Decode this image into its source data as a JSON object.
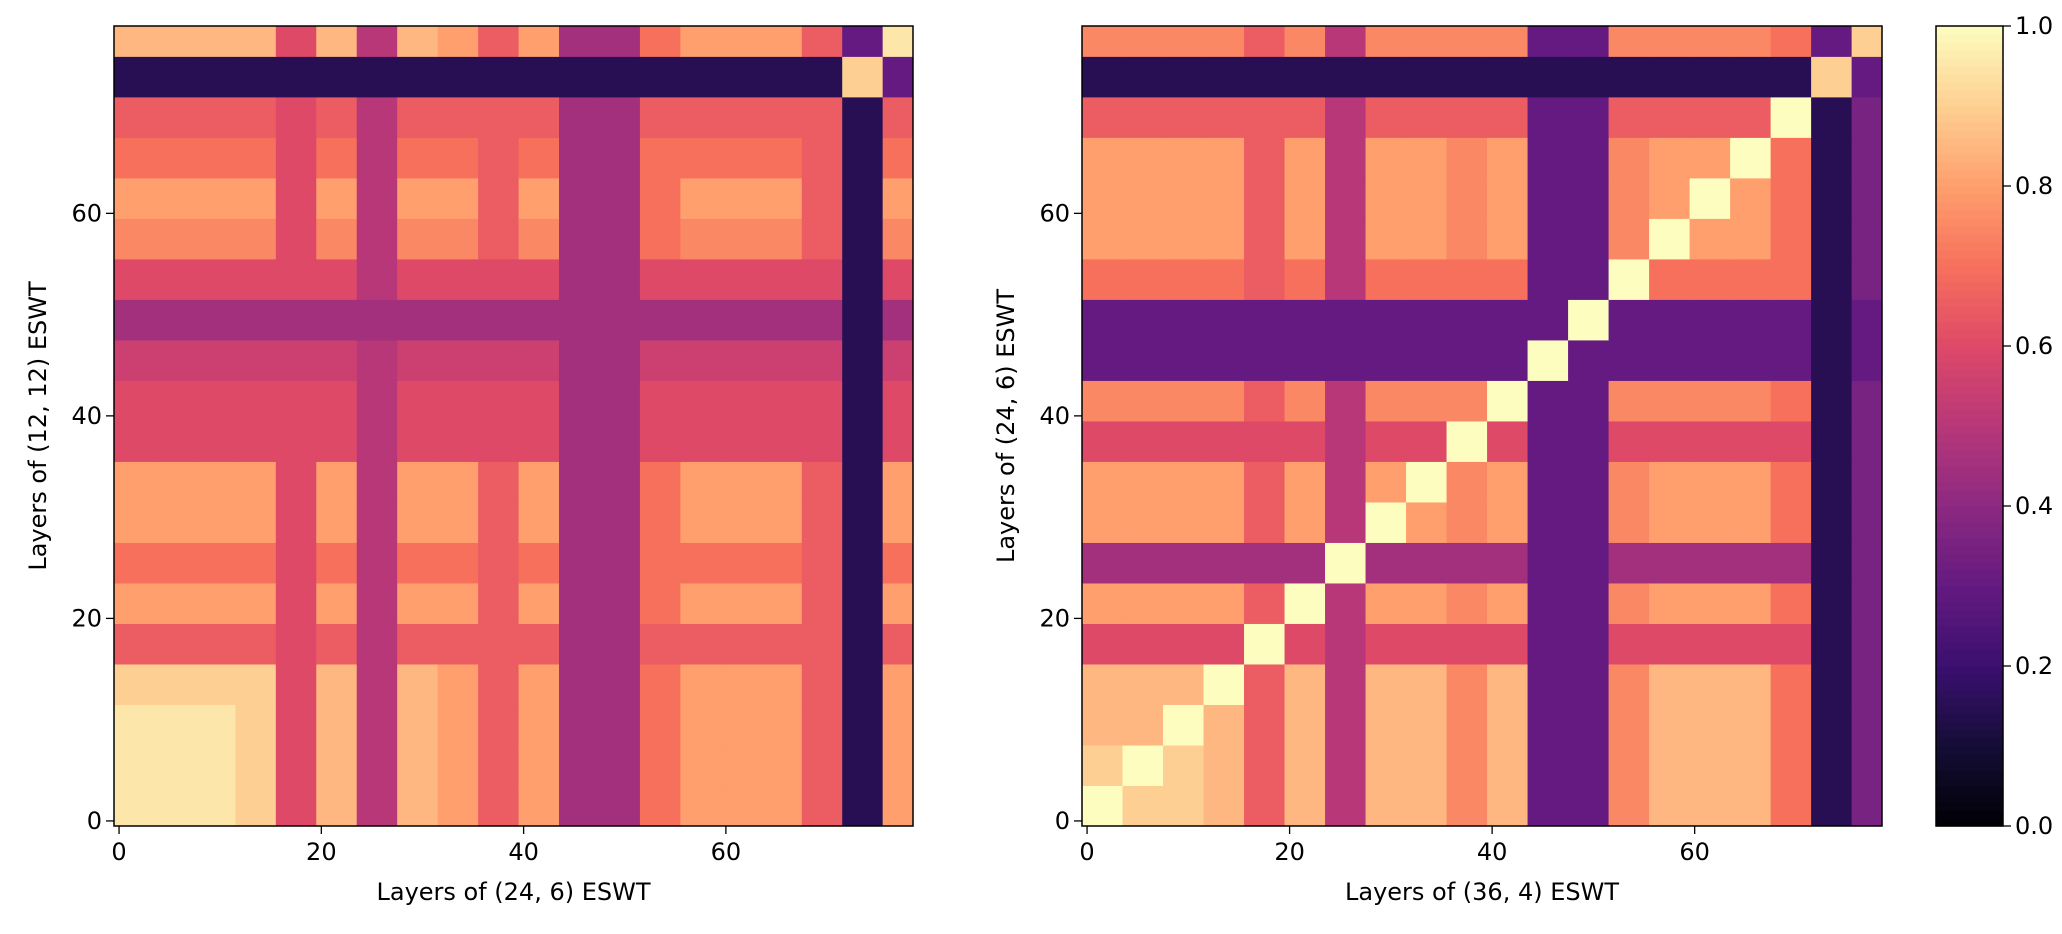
{
  "chart_data": [
    {
      "type": "heatmap",
      "xlabel": "Layers of (24, 6) ESWT",
      "ylabel": "Layers of (12, 12) ESWT",
      "colormap": "magma",
      "xlim": [
        -0.5,
        78.5
      ],
      "ylim": [
        -0.5,
        78.5
      ],
      "xticks": [
        0,
        20,
        40,
        60
      ],
      "yticks": [
        0,
        20,
        40,
        60
      ],
      "xbins": [
        -0.5,
        3.5,
        7.5,
        11.5,
        15.5,
        19.5,
        23.5,
        27.5,
        31.5,
        35.5,
        39.5,
        43.5,
        47.5,
        51.5,
        55.5,
        59.5,
        63.5,
        67.5,
        71.5,
        75.5,
        78.5
      ],
      "ybins": [
        -0.5,
        3.5,
        7.5,
        11.5,
        15.5,
        19.5,
        23.5,
        27.5,
        31.5,
        35.5,
        39.5,
        43.5,
        47.5,
        51.5,
        55.5,
        59.5,
        63.5,
        67.5,
        71.5,
        75.5,
        78.5
      ],
      "z": [
        [
          0.95,
          0.95,
          0.95,
          0.9,
          0.6,
          0.85,
          0.5,
          0.85,
          0.8,
          0.65,
          0.8,
          0.45,
          0.45,
          0.7,
          0.8,
          0.8,
          0.8,
          0.65,
          0.15,
          0.8
        ],
        [
          0.95,
          0.95,
          0.95,
          0.9,
          0.6,
          0.85,
          0.5,
          0.85,
          0.8,
          0.65,
          0.8,
          0.45,
          0.45,
          0.7,
          0.8,
          0.8,
          0.8,
          0.65,
          0.15,
          0.8
        ],
        [
          0.95,
          0.95,
          0.95,
          0.9,
          0.6,
          0.85,
          0.5,
          0.85,
          0.8,
          0.65,
          0.8,
          0.45,
          0.45,
          0.7,
          0.8,
          0.8,
          0.8,
          0.65,
          0.15,
          0.8
        ],
        [
          0.9,
          0.9,
          0.9,
          0.9,
          0.6,
          0.85,
          0.5,
          0.85,
          0.8,
          0.65,
          0.8,
          0.45,
          0.45,
          0.7,
          0.8,
          0.8,
          0.8,
          0.65,
          0.15,
          0.8
        ],
        [
          0.65,
          0.65,
          0.65,
          0.65,
          0.6,
          0.65,
          0.5,
          0.65,
          0.65,
          0.65,
          0.65,
          0.45,
          0.45,
          0.65,
          0.65,
          0.65,
          0.65,
          0.65,
          0.15,
          0.65
        ],
        [
          0.8,
          0.8,
          0.8,
          0.8,
          0.6,
          0.8,
          0.5,
          0.8,
          0.8,
          0.65,
          0.8,
          0.45,
          0.45,
          0.7,
          0.8,
          0.8,
          0.8,
          0.65,
          0.15,
          0.8
        ],
        [
          0.7,
          0.7,
          0.7,
          0.7,
          0.6,
          0.7,
          0.5,
          0.7,
          0.7,
          0.65,
          0.7,
          0.45,
          0.45,
          0.7,
          0.7,
          0.7,
          0.7,
          0.65,
          0.15,
          0.7
        ],
        [
          0.8,
          0.8,
          0.8,
          0.8,
          0.6,
          0.8,
          0.5,
          0.8,
          0.8,
          0.65,
          0.8,
          0.45,
          0.45,
          0.7,
          0.8,
          0.8,
          0.8,
          0.65,
          0.15,
          0.8
        ],
        [
          0.8,
          0.8,
          0.8,
          0.8,
          0.6,
          0.8,
          0.5,
          0.8,
          0.8,
          0.65,
          0.8,
          0.45,
          0.45,
          0.7,
          0.8,
          0.8,
          0.8,
          0.65,
          0.15,
          0.8
        ],
        [
          0.6,
          0.6,
          0.6,
          0.6,
          0.6,
          0.6,
          0.5,
          0.6,
          0.6,
          0.6,
          0.6,
          0.45,
          0.45,
          0.6,
          0.6,
          0.6,
          0.6,
          0.6,
          0.15,
          0.6
        ],
        [
          0.6,
          0.6,
          0.6,
          0.6,
          0.6,
          0.6,
          0.5,
          0.6,
          0.6,
          0.6,
          0.6,
          0.45,
          0.45,
          0.6,
          0.6,
          0.6,
          0.6,
          0.6,
          0.15,
          0.6
        ],
        [
          0.55,
          0.55,
          0.55,
          0.55,
          0.55,
          0.55,
          0.5,
          0.55,
          0.55,
          0.55,
          0.55,
          0.45,
          0.45,
          0.55,
          0.55,
          0.55,
          0.55,
          0.55,
          0.15,
          0.55
        ],
        [
          0.45,
          0.45,
          0.45,
          0.45,
          0.45,
          0.45,
          0.45,
          0.45,
          0.45,
          0.45,
          0.45,
          0.45,
          0.45,
          0.45,
          0.45,
          0.45,
          0.45,
          0.45,
          0.15,
          0.45
        ],
        [
          0.6,
          0.6,
          0.6,
          0.6,
          0.6,
          0.6,
          0.5,
          0.6,
          0.6,
          0.6,
          0.6,
          0.45,
          0.45,
          0.6,
          0.6,
          0.6,
          0.6,
          0.6,
          0.15,
          0.6
        ],
        [
          0.75,
          0.75,
          0.75,
          0.75,
          0.6,
          0.75,
          0.5,
          0.75,
          0.75,
          0.65,
          0.75,
          0.45,
          0.45,
          0.7,
          0.75,
          0.75,
          0.75,
          0.65,
          0.15,
          0.75
        ],
        [
          0.8,
          0.8,
          0.8,
          0.8,
          0.6,
          0.8,
          0.5,
          0.8,
          0.8,
          0.65,
          0.8,
          0.45,
          0.45,
          0.7,
          0.8,
          0.8,
          0.8,
          0.65,
          0.15,
          0.8
        ],
        [
          0.7,
          0.7,
          0.7,
          0.7,
          0.6,
          0.7,
          0.5,
          0.7,
          0.7,
          0.65,
          0.7,
          0.45,
          0.45,
          0.7,
          0.7,
          0.7,
          0.7,
          0.65,
          0.15,
          0.7
        ],
        [
          0.65,
          0.65,
          0.65,
          0.65,
          0.6,
          0.65,
          0.5,
          0.65,
          0.65,
          0.65,
          0.65,
          0.45,
          0.45,
          0.65,
          0.65,
          0.65,
          0.65,
          0.65,
          0.15,
          0.65
        ],
        [
          0.15,
          0.15,
          0.15,
          0.15,
          0.15,
          0.15,
          0.15,
          0.15,
          0.15,
          0.15,
          0.15,
          0.15,
          0.15,
          0.15,
          0.15,
          0.15,
          0.15,
          0.15,
          0.9,
          0.3
        ],
        [
          0.85,
          0.85,
          0.85,
          0.85,
          0.6,
          0.85,
          0.5,
          0.85,
          0.8,
          0.65,
          0.8,
          0.45,
          0.45,
          0.7,
          0.8,
          0.8,
          0.8,
          0.65,
          0.3,
          0.95
        ]
      ],
      "colorbar": {
        "lim": [
          0,
          1
        ],
        "ticks": [
          {
            "value": 0,
            "label": "0.0"
          },
          0.2,
          0.4,
          0.6,
          0.8,
          {
            "value": 1,
            "label": "1.0"
          }
        ]
      }
    },
    {
      "type": "heatmap",
      "xlabel": "Layers of (36, 4) ESWT",
      "ylabel": "Layers of (24, 6) ESWT",
      "colormap": "magma",
      "xlim": [
        -0.5,
        78.5
      ],
      "ylim": [
        -0.5,
        78.5
      ],
      "xticks": [
        0,
        20,
        40,
        60
      ],
      "yticks": [
        0,
        20,
        40,
        60
      ],
      "xbins": [
        -0.5,
        3.5,
        7.5,
        11.5,
        15.5,
        19.5,
        23.5,
        27.5,
        31.5,
        35.5,
        39.5,
        43.5,
        47.5,
        51.5,
        55.5,
        59.5,
        63.5,
        67.5,
        71.5,
        75.5,
        78.5
      ],
      "ybins": [
        -0.5,
        3.5,
        7.5,
        11.5,
        15.5,
        19.5,
        23.5,
        27.5,
        31.5,
        35.5,
        39.5,
        43.5,
        47.5,
        51.5,
        55.5,
        59.5,
        63.5,
        67.5,
        71.5,
        75.5,
        78.5
      ],
      "z": [
        [
          1.0,
          0.9,
          0.9,
          0.85,
          0.65,
          0.85,
          0.5,
          0.85,
          0.85,
          0.75,
          0.85,
          0.3,
          0.3,
          0.75,
          0.85,
          0.85,
          0.85,
          0.7,
          0.15,
          0.35
        ],
        [
          0.9,
          1.0,
          0.9,
          0.85,
          0.65,
          0.85,
          0.5,
          0.85,
          0.85,
          0.75,
          0.85,
          0.3,
          0.3,
          0.75,
          0.85,
          0.85,
          0.85,
          0.7,
          0.15,
          0.35
        ],
        [
          0.85,
          0.85,
          1.0,
          0.85,
          0.65,
          0.85,
          0.5,
          0.85,
          0.85,
          0.75,
          0.85,
          0.3,
          0.3,
          0.75,
          0.85,
          0.85,
          0.85,
          0.7,
          0.15,
          0.35
        ],
        [
          0.85,
          0.85,
          0.85,
          1.0,
          0.65,
          0.85,
          0.5,
          0.85,
          0.85,
          0.75,
          0.85,
          0.3,
          0.3,
          0.75,
          0.85,
          0.85,
          0.85,
          0.7,
          0.15,
          0.35
        ],
        [
          0.6,
          0.6,
          0.6,
          0.6,
          1.0,
          0.6,
          0.5,
          0.6,
          0.6,
          0.6,
          0.6,
          0.3,
          0.3,
          0.6,
          0.6,
          0.6,
          0.6,
          0.6,
          0.15,
          0.35
        ],
        [
          0.8,
          0.8,
          0.8,
          0.8,
          0.65,
          1.0,
          0.5,
          0.8,
          0.8,
          0.75,
          0.8,
          0.3,
          0.3,
          0.75,
          0.8,
          0.8,
          0.8,
          0.7,
          0.15,
          0.35
        ],
        [
          0.45,
          0.45,
          0.45,
          0.45,
          0.45,
          0.45,
          1.0,
          0.45,
          0.45,
          0.45,
          0.45,
          0.3,
          0.3,
          0.45,
          0.45,
          0.45,
          0.45,
          0.45,
          0.15,
          0.35
        ],
        [
          0.8,
          0.8,
          0.8,
          0.8,
          0.65,
          0.8,
          0.5,
          1.0,
          0.8,
          0.75,
          0.8,
          0.3,
          0.3,
          0.75,
          0.8,
          0.8,
          0.8,
          0.7,
          0.15,
          0.35
        ],
        [
          0.8,
          0.8,
          0.8,
          0.8,
          0.65,
          0.8,
          0.5,
          0.8,
          1.0,
          0.75,
          0.8,
          0.3,
          0.3,
          0.75,
          0.8,
          0.8,
          0.8,
          0.7,
          0.15,
          0.35
        ],
        [
          0.6,
          0.6,
          0.6,
          0.6,
          0.6,
          0.6,
          0.5,
          0.6,
          0.6,
          1.0,
          0.6,
          0.3,
          0.3,
          0.6,
          0.6,
          0.6,
          0.6,
          0.6,
          0.15,
          0.35
        ],
        [
          0.75,
          0.75,
          0.75,
          0.75,
          0.65,
          0.75,
          0.5,
          0.75,
          0.75,
          0.75,
          1.0,
          0.3,
          0.3,
          0.75,
          0.75,
          0.75,
          0.75,
          0.7,
          0.15,
          0.35
        ],
        [
          0.3,
          0.3,
          0.3,
          0.3,
          0.3,
          0.3,
          0.3,
          0.3,
          0.3,
          0.3,
          0.3,
          1.0,
          0.3,
          0.3,
          0.3,
          0.3,
          0.3,
          0.3,
          0.15,
          0.3
        ],
        [
          0.3,
          0.3,
          0.3,
          0.3,
          0.3,
          0.3,
          0.3,
          0.3,
          0.3,
          0.3,
          0.3,
          0.3,
          1.0,
          0.3,
          0.3,
          0.3,
          0.3,
          0.3,
          0.15,
          0.3
        ],
        [
          0.7,
          0.7,
          0.7,
          0.7,
          0.65,
          0.7,
          0.5,
          0.7,
          0.7,
          0.7,
          0.7,
          0.3,
          0.3,
          1.0,
          0.7,
          0.7,
          0.7,
          0.7,
          0.15,
          0.35
        ],
        [
          0.8,
          0.8,
          0.8,
          0.8,
          0.65,
          0.8,
          0.5,
          0.8,
          0.8,
          0.75,
          0.8,
          0.3,
          0.3,
          0.75,
          1.0,
          0.8,
          0.8,
          0.7,
          0.15,
          0.35
        ],
        [
          0.8,
          0.8,
          0.8,
          0.8,
          0.65,
          0.8,
          0.5,
          0.8,
          0.8,
          0.75,
          0.8,
          0.3,
          0.3,
          0.75,
          0.8,
          1.0,
          0.8,
          0.7,
          0.15,
          0.35
        ],
        [
          0.8,
          0.8,
          0.8,
          0.8,
          0.65,
          0.8,
          0.5,
          0.8,
          0.8,
          0.75,
          0.8,
          0.3,
          0.3,
          0.75,
          0.8,
          0.8,
          1.0,
          0.7,
          0.15,
          0.35
        ],
        [
          0.65,
          0.65,
          0.65,
          0.65,
          0.65,
          0.65,
          0.5,
          0.65,
          0.65,
          0.65,
          0.65,
          0.3,
          0.3,
          0.65,
          0.65,
          0.65,
          0.65,
          1.0,
          0.15,
          0.35
        ],
        [
          0.15,
          0.15,
          0.15,
          0.15,
          0.15,
          0.15,
          0.15,
          0.15,
          0.15,
          0.15,
          0.15,
          0.15,
          0.15,
          0.15,
          0.15,
          0.15,
          0.15,
          0.15,
          0.9,
          0.3
        ],
        [
          0.75,
          0.75,
          0.75,
          0.75,
          0.65,
          0.75,
          0.5,
          0.75,
          0.75,
          0.75,
          0.75,
          0.3,
          0.3,
          0.75,
          0.75,
          0.75,
          0.75,
          0.7,
          0.3,
          0.9
        ]
      ]
    }
  ]
}
